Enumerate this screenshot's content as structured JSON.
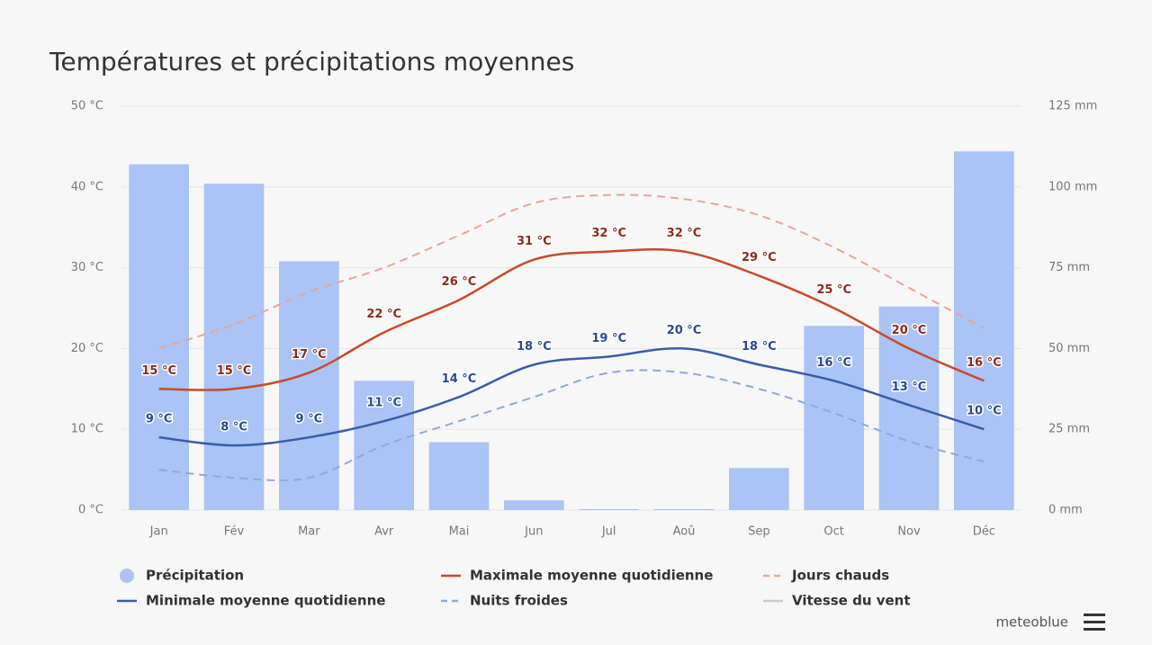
{
  "chart_data": {
    "type": "combo",
    "title": "Températures et précipitations moyennes",
    "categories": [
      "Jan",
      "Fév",
      "Mar",
      "Avr",
      "Mai",
      "Jun",
      "Jul",
      "Aoû",
      "Sep",
      "Oct",
      "Nov",
      "Déc"
    ],
    "ylim": [
      0,
      50
    ],
    "yticks": [
      {
        "value": 0,
        "label": "0 °C"
      },
      {
        "value": 10,
        "label": "10 °C"
      },
      {
        "value": 20,
        "label": "20 °C"
      },
      {
        "value": 30,
        "label": "30 °C"
      },
      {
        "value": 40,
        "label": "40 °C"
      },
      {
        "value": 50,
        "label": "50 °C"
      }
    ],
    "y2lim": [
      0,
      125
    ],
    "y2ticks": [
      {
        "value": 0,
        "label": "0 mm"
      },
      {
        "value": 25,
        "label": "25 mm"
      },
      {
        "value": 50,
        "label": "50 mm"
      },
      {
        "value": 75,
        "label": "75 mm"
      },
      {
        "value": 100,
        "label": "100 mm"
      },
      {
        "value": 125,
        "label": "125 mm"
      }
    ],
    "grid": true,
    "series": [
      {
        "name": "Précipitation",
        "type": "bar",
        "axis": "y2",
        "color": "#a9c4f5",
        "values": [
          107,
          101,
          77,
          40,
          21,
          3,
          0.3,
          0.3,
          13,
          57,
          63,
          111
        ]
      },
      {
        "name": "Maximale moyenne quotidienne",
        "type": "line",
        "color": "#c8492c",
        "label_color": "#8b2a1a",
        "values": [
          15,
          15,
          17,
          22,
          26,
          31,
          32,
          32,
          29,
          25,
          20,
          16
        ],
        "value_labels": [
          "15 °C",
          "15 °C",
          "17 °C",
          "22 °C",
          "26 °C",
          "31 °C",
          "32 °C",
          "32 °C",
          "29 °C",
          "25 °C",
          "20 °C",
          "16 °C"
        ]
      },
      {
        "name": "Jours chauds",
        "type": "line",
        "dashed": true,
        "color": "#eba596",
        "values": [
          20,
          23,
          27,
          30,
          34,
          38,
          39,
          38.5,
          36.5,
          32.5,
          27.5,
          22.5
        ]
      },
      {
        "name": "Minimale moyenne quotidienne",
        "type": "line",
        "color": "#3a5da8",
        "label_color": "#2b4a8c",
        "values": [
          9,
          8,
          9,
          11,
          14,
          18,
          19,
          20,
          18,
          16,
          13,
          10
        ],
        "value_labels": [
          "9 °C",
          "8 °C",
          "9 °C",
          "11 °C",
          "14 °C",
          "18 °C",
          "19 °C",
          "20 °C",
          "18 °C",
          "16 °C",
          "13 °C",
          "10 °C"
        ]
      },
      {
        "name": "Nuits froides",
        "type": "line",
        "dashed": true,
        "color": "#8eaadb",
        "values": [
          5,
          4,
          4,
          8,
          11,
          14,
          17,
          17,
          15,
          12,
          8.5,
          6
        ]
      },
      {
        "name": "Vitesse du vent",
        "type": "line",
        "visible": false,
        "color": "#cccccc"
      }
    ],
    "credit": "meteoblue"
  }
}
